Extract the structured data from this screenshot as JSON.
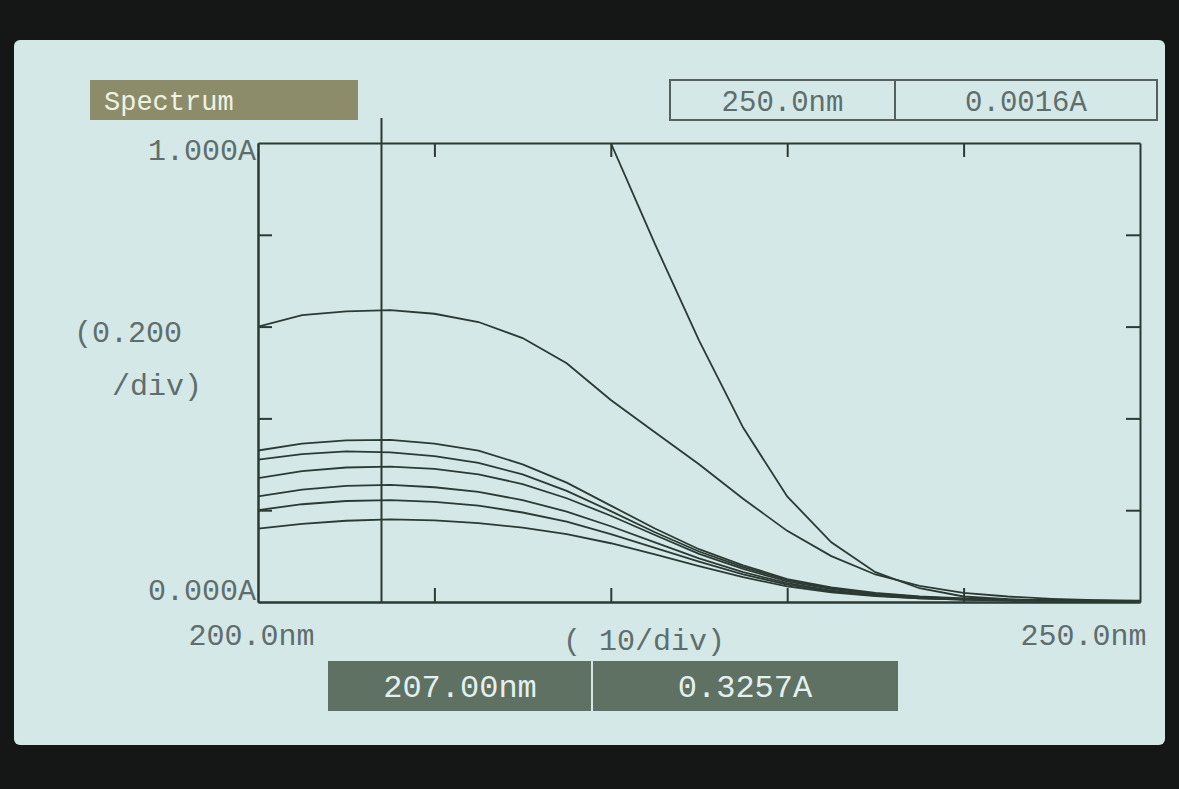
{
  "chart_data": {
    "type": "line",
    "title": "Spectrum",
    "color": "#2c3a34",
    "x": [
      200,
      202.5,
      205,
      207.5,
      210,
      212.5,
      215,
      217.5,
      220,
      222.5,
      225,
      227.5,
      230,
      232.5,
      235,
      237.5,
      240,
      242.5,
      245,
      247.5,
      250
    ],
    "xlim": [
      200,
      250
    ],
    "xticks": [
      {
        "value": 200,
        "label": "200.0nm"
      },
      {
        "value": 250,
        "label": "250.0nm"
      }
    ],
    "x_minor_ticks": [
      210,
      220,
      230,
      240
    ],
    "x_division_label": "( 10/div)",
    "ylim": [
      0,
      1
    ],
    "yticks": [
      {
        "value": 0,
        "label": "0.000A"
      },
      {
        "value": 1,
        "label": "1.000A"
      }
    ],
    "y_minor_ticks": [
      0.2,
      0.4,
      0.6,
      0.8
    ],
    "y_division_label": [
      "(0.200",
      "/div)"
    ],
    "series": [
      {
        "values": [
          null,
          null,
          null,
          null,
          null,
          null,
          null,
          null,
          1.0,
          0.78,
          0.57,
          0.38,
          0.23,
          0.13,
          0.065,
          0.03,
          0.012,
          0.006,
          0.003,
          0.002,
          0.0016
        ]
      },
      {
        "values": [
          0.6,
          0.625,
          0.633,
          0.636,
          0.628,
          0.61,
          0.575,
          0.52,
          0.44,
          0.37,
          0.3,
          0.225,
          0.155,
          0.1,
          0.06,
          0.035,
          0.02,
          0.012,
          0.007,
          0.004,
          0.003
        ]
      },
      {
        "values": [
          0.33,
          0.345,
          0.352,
          0.353,
          0.345,
          0.33,
          0.3,
          0.26,
          0.21,
          0.16,
          0.115,
          0.08,
          0.05,
          0.032,
          0.02,
          0.012,
          0.008,
          0.005,
          0.004,
          0.003,
          0.002
        ]
      },
      {
        "values": [
          0.31,
          0.322,
          0.328,
          0.326,
          0.318,
          0.303,
          0.278,
          0.242,
          0.198,
          0.152,
          0.11,
          0.076,
          0.048,
          0.03,
          0.018,
          0.011,
          0.007,
          0.005,
          0.004,
          0.003,
          0.002
        ]
      },
      {
        "values": [
          0.27,
          0.285,
          0.293,
          0.295,
          0.29,
          0.278,
          0.257,
          0.226,
          0.188,
          0.146,
          0.105,
          0.072,
          0.045,
          0.028,
          0.017,
          0.01,
          0.006,
          0.004,
          0.003,
          0.002,
          0.002
        ]
      },
      {
        "values": [
          0.23,
          0.245,
          0.253,
          0.255,
          0.25,
          0.24,
          0.222,
          0.197,
          0.165,
          0.13,
          0.095,
          0.065,
          0.041,
          0.025,
          0.015,
          0.009,
          0.006,
          0.004,
          0.003,
          0.002,
          0.002
        ]
      },
      {
        "values": [
          0.2,
          0.213,
          0.22,
          0.222,
          0.218,
          0.21,
          0.195,
          0.175,
          0.148,
          0.118,
          0.088,
          0.06,
          0.038,
          0.023,
          0.014,
          0.008,
          0.005,
          0.004,
          0.003,
          0.002,
          0.001
        ]
      },
      {
        "values": [
          0.16,
          0.17,
          0.177,
          0.18,
          0.178,
          0.172,
          0.162,
          0.148,
          0.128,
          0.104,
          0.078,
          0.054,
          0.034,
          0.021,
          0.013,
          0.008,
          0.005,
          0.003,
          0.002,
          0.002,
          0.001
        ]
      }
    ],
    "cursor_x": 207,
    "cursor_readout": [
      "207.00nm",
      "0.3257A"
    ],
    "top_readout": [
      "250.0nm",
      "0.0016A"
    ]
  }
}
